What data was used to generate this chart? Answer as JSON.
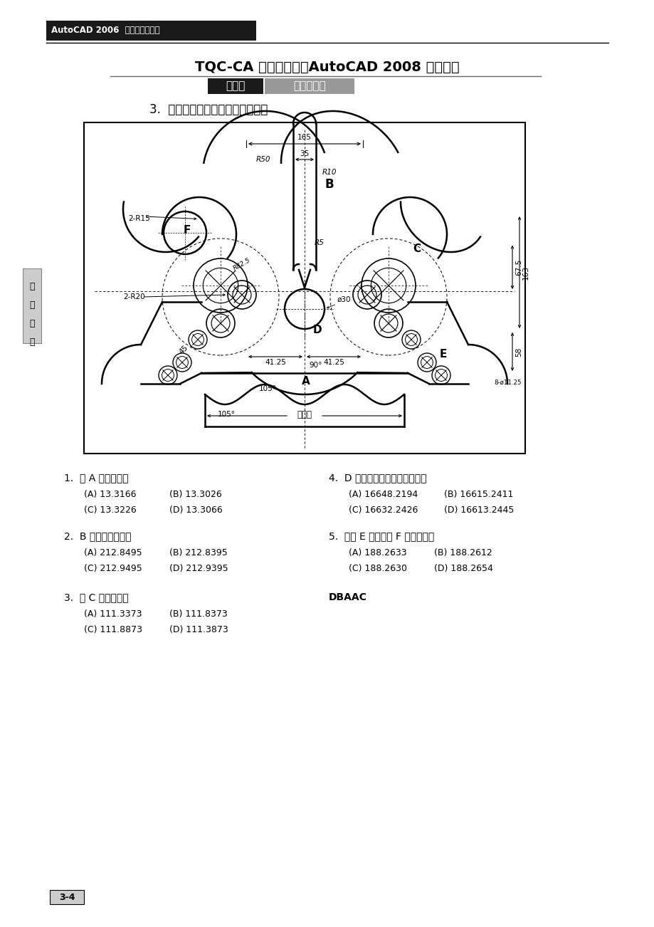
{
  "page_bg": "#ffffff",
  "header_bg": "#1a1a1a",
  "header_text": "AutoCAD 2006  實力養成暨評量",
  "title_line": "TQC-CA 工程製圖類－AutoCAD 2008 術科題庫",
  "cat_label_black": "第一類",
  "cat_label_gray": "綜合應用一",
  "section_label": "3.  試繪出下圖並回答下列五個問題",
  "diagram_note": "五等分",
  "q1": "1.  弧 A 半徑為何？",
  "q1a": "(A) 13.3166",
  "q1b": "(B) 13.3026",
  "q1c": "(C) 13.3226",
  "q1d": "(D) 13.3066",
  "q2": "2.  B 區域周長為何？",
  "q2a": "(A) 212.8495",
  "q2b": "(B) 212.8395",
  "q2c": "(C) 212.9495",
  "q2d": "(D) 212.9395",
  "q3": "3.  弧 C 長度為何？",
  "q3a": "(A) 111.3373",
  "q3b": "(B) 111.8373",
  "q3c": "(C) 111.8873",
  "q3d": "(D) 111.3873",
  "q4": "4.  D 區域扣除內孔之面積為何？",
  "q4a": "(A) 16648.2194",
  "q4b": "(B) 16615.2411",
  "q4c": "(C) 16632.2426",
  "q4d": "(D) 16613.2445",
  "q5": "5.  中點 E 至中心點 F 距離為何？",
  "q5a": "(A) 188.2633",
  "q5b": "(B) 188.2612",
  "q5c": "(C) 188.2630",
  "q5d": "(D) 188.2654",
  "answers": "DBAAC",
  "page_num": "3-4",
  "side_text": [
    "術",
    "科",
    "題",
    "庫"
  ],
  "dim_165": "165",
  "dim_35": "35",
  "dim_R50": "R50",
  "dim_R10": "R10",
  "dim_R5": "R5",
  "dim_2R15": "2-R15",
  "dim_2R20": "2-R20",
  "dim_R82": "R82.5",
  "dim_D30": "ø30",
  "dim_4125": "41.25",
  "dim_90": "90°",
  "dim_105a": "105°",
  "dim_105b": "105°",
  "dim_45": "45",
  "dim_675": "67.5",
  "dim_163": "163",
  "dim_58": "58",
  "dim_811": "8-ø11.25"
}
